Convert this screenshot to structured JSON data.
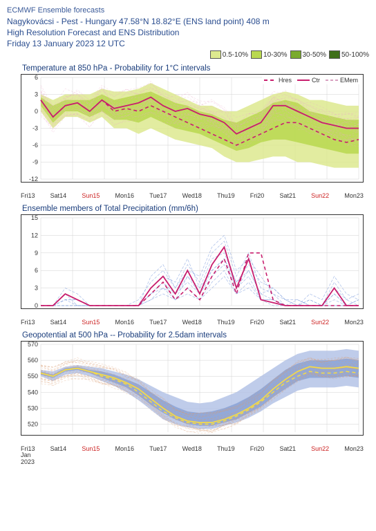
{
  "header": {
    "source": "ECMWF Ensemble forecasts",
    "location": "Nagykovácsi - Pest - Hungary 47.58°N 18.82°E (ENS land point) 408 m",
    "product": "High Resolution Forecast and ENS Distribution",
    "init": "Friday 13 January 2023 12 UTC"
  },
  "prob_legend": [
    {
      "label": "0.5-10%",
      "color": "#dde98f"
    },
    {
      "label": "10-30%",
      "color": "#b9d84f"
    },
    {
      "label": "30-50%",
      "color": "#7aab2e"
    },
    {
      "label": "50-100%",
      "color": "#3f6f1a"
    }
  ],
  "line_legend": [
    {
      "label": "Hres",
      "color": "#c81e6e",
      "dash": "5,4"
    },
    {
      "label": "Ctr",
      "color": "#c81e6e",
      "dash": ""
    },
    {
      "label": "EMem",
      "color": "#d8a0c0",
      "dash": "4,3"
    }
  ],
  "xaxis": {
    "labels": [
      "Fri13",
      "Sat14",
      "Sun15",
      "Mon16",
      "Tue17",
      "Wed18",
      "Thu19",
      "Fri20",
      "Sat21",
      "Sun22",
      "Mon23"
    ],
    "sundays": [
      2,
      9
    ],
    "sub_month": "Jan",
    "sub_year": "2023"
  },
  "panel1": {
    "title": "Temperature at 850 hPa - Probability for 1°C intervals",
    "ylim": [
      -12,
      6
    ],
    "ytick_step": 3,
    "height": 155,
    "band_outer_color": "#dde98f",
    "band_mid_color": "#b9d84f",
    "emem_color": "#e9a8c8",
    "ctr_color": "#c81e6e",
    "ctr": [
      2,
      -1,
      1,
      1.5,
      0,
      2,
      0.5,
      1,
      1.5,
      2.5,
      1,
      0,
      0.5,
      -0.5,
      -1,
      -2,
      -4,
      -3,
      -2,
      1,
      1,
      0,
      -1,
      -2,
      -2.5,
      -3,
      -3
    ],
    "hres": [
      2,
      -1,
      1,
      1.5,
      0,
      2,
      0,
      0.5,
      0,
      1,
      0,
      -1,
      -2,
      -3,
      -4,
      -5,
      -6,
      -5,
      -4,
      -3,
      -2,
      -2,
      -3,
      -4,
      -5,
      -5.5,
      -5
    ],
    "outer_hi": [
      3,
      2,
      3,
      3,
      3,
      4,
      3.5,
      3.5,
      4,
      5,
      4,
      3,
      2,
      1,
      1,
      0,
      0,
      1,
      2,
      3,
      3.5,
      3,
      2,
      2,
      1.5,
      1,
      1
    ],
    "outer_lo": [
      0,
      -3,
      -1,
      -1,
      -2,
      -1,
      -3,
      -3,
      -4,
      -3,
      -4,
      -5,
      -5.5,
      -6,
      -6.5,
      -8,
      -9,
      -9,
      -8.5,
      -8,
      -8,
      -9,
      -9,
      -9.5,
      -10,
      -10,
      -10
    ],
    "mid_hi": [
      2.5,
      1,
      2,
      2,
      2,
      3,
      2,
      2.5,
      3,
      3.5,
      2.5,
      1.5,
      1,
      0,
      -0.5,
      -1.5,
      -2,
      -1,
      0,
      1.5,
      2,
      1.5,
      0,
      -0.5,
      -1,
      -1.5,
      -1.5
    ],
    "mid_lo": [
      1,
      -2,
      0,
      0,
      -1,
      0,
      -1.5,
      -1.5,
      -2,
      -1,
      -2,
      -3,
      -3.5,
      -4,
      -5,
      -6,
      -7,
      -6.5,
      -5.5,
      -5,
      -5,
      -5.5,
      -6,
      -6.5,
      -7,
      -7.5,
      -7.5
    ]
  },
  "panel2": {
    "title": "Ensemble members of Total Precipitation (mm/6h)",
    "ylim": [
      0,
      15
    ],
    "ytick_step": 3,
    "height": 135,
    "emem_color": "#6a8fd8",
    "ctr_color": "#c81e6e",
    "ctr": [
      0,
      0,
      2,
      1,
      0,
      0,
      0,
      0,
      0,
      3,
      5,
      2,
      6,
      2,
      7,
      10,
      3,
      8,
      1,
      0.5,
      0,
      0,
      0,
      0,
      3,
      0,
      0
    ],
    "hres": [
      0,
      0,
      2,
      1,
      0,
      0,
      0,
      0,
      0,
      2,
      4,
      1,
      3,
      1,
      5,
      8,
      2,
      9,
      9,
      1,
      0,
      0,
      0,
      0,
      0,
      0,
      0
    ],
    "members": [
      [
        0,
        0,
        1,
        0,
        0,
        0,
        0,
        0,
        0,
        2,
        4,
        1,
        5,
        3,
        6,
        8,
        4,
        6,
        2,
        1,
        0,
        0,
        1,
        0,
        2,
        0,
        1
      ],
      [
        0,
        0,
        3,
        2,
        0,
        0,
        0,
        0,
        1,
        4,
        6,
        3,
        7,
        4,
        9,
        11,
        5,
        9,
        3,
        2,
        0,
        1,
        0,
        0,
        4,
        1,
        0
      ],
      [
        0,
        0,
        1,
        1,
        0,
        0,
        0,
        0,
        0,
        1,
        3,
        2,
        4,
        2,
        5,
        7,
        3,
        5,
        1,
        0,
        0,
        0,
        0,
        0,
        1,
        0,
        0
      ],
      [
        0,
        0,
        2,
        0,
        0,
        0,
        0,
        0,
        0,
        3,
        5,
        4,
        8,
        3,
        8,
        9,
        4,
        7,
        4,
        3,
        1,
        0,
        2,
        1,
        5,
        2,
        1
      ],
      [
        0,
        0,
        0,
        0,
        0,
        0,
        0,
        0,
        0,
        2,
        3,
        1,
        3,
        1,
        4,
        6,
        2,
        4,
        1,
        1,
        0,
        0,
        0,
        0,
        0,
        0,
        0
      ],
      [
        0,
        0,
        2,
        1,
        0,
        0,
        0,
        0,
        0,
        5,
        7,
        3,
        6,
        5,
        10,
        12,
        6,
        8,
        5,
        2,
        1,
        0,
        1,
        0,
        3,
        1,
        2
      ],
      [
        0,
        0,
        1,
        1,
        0,
        0,
        0,
        0,
        0,
        2,
        4,
        2,
        5,
        2,
        6,
        8,
        3,
        6,
        2,
        3,
        1,
        1,
        0,
        0,
        2,
        0,
        1
      ],
      [
        0,
        0,
        0,
        0,
        0,
        0,
        0,
        0,
        0,
        1,
        2,
        1,
        2,
        1,
        3,
        5,
        2,
        3,
        1,
        1,
        0,
        0,
        0,
        0,
        0,
        0,
        0
      ]
    ]
  },
  "panel3": {
    "title": "Geopotential at 500 hPa -- Probability for 2.5dam intervals",
    "ylim": [
      515,
      570
    ],
    "ytick_lo": 520,
    "ytick_step": 10,
    "height": 135,
    "band_outer_color": "#b4c3e6",
    "band_mid_color": "#8aa2d6",
    "emem_color": "#d89a70",
    "ctr_color": "#f2d94a",
    "ctr": [
      552,
      550,
      554,
      555,
      553,
      551,
      549,
      546,
      542,
      536,
      530,
      525,
      522,
      521,
      521,
      523,
      526,
      530,
      535,
      542,
      548,
      553,
      556,
      555,
      555,
      556,
      555
    ],
    "hres": [
      552,
      550,
      554,
      555,
      553,
      550,
      548,
      545,
      540,
      534,
      528,
      524,
      521,
      520,
      520,
      522,
      525,
      529,
      534,
      540,
      546,
      550,
      553,
      552,
      552,
      553,
      552
    ],
    "outer_hi": [
      554,
      553,
      556,
      557,
      556,
      555,
      553,
      551,
      548,
      544,
      540,
      537,
      534,
      533,
      534,
      537,
      540,
      545,
      550,
      555,
      560,
      564,
      566,
      566,
      566,
      567,
      566
    ],
    "outer_lo": [
      550,
      547,
      551,
      552,
      550,
      547,
      544,
      540,
      535,
      529,
      523,
      520,
      518,
      517,
      517,
      519,
      521,
      524,
      528,
      533,
      537,
      541,
      543,
      543,
      543,
      544,
      543
    ],
    "mid_hi": [
      553,
      551,
      555,
      556,
      554,
      553,
      551,
      548,
      545,
      540,
      535,
      531,
      528,
      527,
      528,
      530,
      533,
      537,
      542,
      548,
      554,
      558,
      560,
      560,
      560,
      561,
      560
    ],
    "mid_lo": [
      551,
      549,
      553,
      554,
      552,
      549,
      546,
      543,
      538,
      532,
      527,
      523,
      520,
      519,
      519,
      521,
      523,
      527,
      531,
      537,
      542,
      547,
      549,
      549,
      549,
      550,
      549
    ]
  }
}
